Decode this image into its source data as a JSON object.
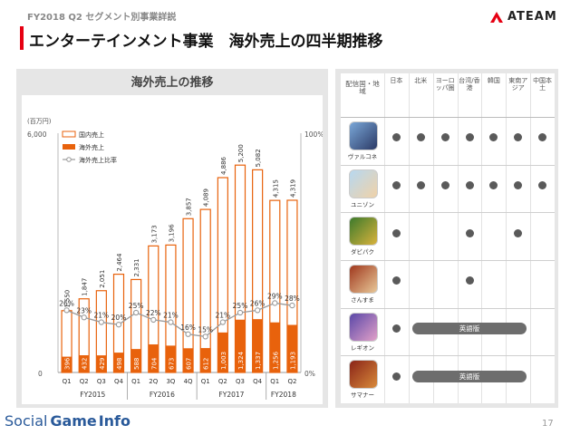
{
  "header": {
    "subtitle": "FY2018 Q2 セグメント別事業詳説",
    "title": "エンターテインメント事業　海外売上の四半期推移",
    "logo_text": "ATEAM",
    "accent_color": "#e60012"
  },
  "chart": {
    "panel_title": "海外売上の推移",
    "unit_label": "(百万円)",
    "left_axis_ticks": [
      "0",
      "6,000"
    ],
    "right_axis_ticks": [
      "0%",
      "100%"
    ]
  },
  "chart_data": {
    "type": "bar",
    "categories": [
      "Q1",
      "Q2",
      "Q3",
      "Q4",
      "Q1",
      "2Q",
      "3Q",
      "4Q",
      "Q1",
      "Q2",
      "Q3",
      "Q4",
      "Q1",
      "Q2"
    ],
    "fiscal_years": [
      {
        "label": "FY2015",
        "count": 4
      },
      {
        "label": "FY2016",
        "count": 4
      },
      {
        "label": "FY2017",
        "count": 4
      },
      {
        "label": "FY2018",
        "count": 2
      }
    ],
    "series": [
      {
        "name": "国内売上",
        "type": "bar-outline",
        "color": "#e8620c",
        "values": [
          1550,
          1847,
          2051,
          2464,
          2331,
          3173,
          3196,
          3857,
          4089,
          4886,
          5200,
          5082,
          4315,
          4319
        ],
        "labels": [
          "1,550",
          "1,847",
          "2,051",
          "2,464",
          "2,331",
          "3,173",
          "3,196",
          "3,857",
          "4,089",
          "4,886",
          "5,200",
          "5,082",
          "4,315",
          "4,319"
        ]
      },
      {
        "name": "海外売上",
        "type": "bar-filled",
        "color": "#e8620c",
        "values": [
          396,
          432,
          429,
          498,
          588,
          704,
          673,
          607,
          612,
          1003,
          1324,
          1337,
          1256,
          1193
        ],
        "labels": [
          "396",
          "432",
          "429",
          "498",
          "588",
          "704",
          "673",
          "607",
          "612",
          "1,003",
          "1,324",
          "1,337",
          "1,256",
          "1,193"
        ]
      },
      {
        "name": "海外売上比率",
        "type": "line",
        "color": "#9a9a9a",
        "values": [
          26,
          23,
          21,
          20,
          25,
          22,
          21,
          16,
          15,
          21,
          25,
          26,
          29,
          28
        ],
        "labels": [
          "26%",
          "23%",
          "21%",
          "20%",
          "25%",
          "22%",
          "21%",
          "16%",
          "15%",
          "21%",
          "25%",
          "26%",
          "29%",
          "28%"
        ]
      }
    ],
    "ylim": [
      0,
      6000
    ],
    "y2lim": [
      0,
      100
    ],
    "legend_position": "top-left"
  },
  "table": {
    "header_first": "配信国・地域",
    "columns": [
      "日本",
      "北米",
      "ヨーロッパ圏",
      "台湾/香港",
      "韓国",
      "東南アジア",
      "中国本土"
    ],
    "rows": [
      {
        "name": "ヴァルコネ",
        "icon": "valkone-icon",
        "colors": [
          "#7aa7d8",
          "#2b3a66"
        ],
        "dots": [
          true,
          true,
          true,
          true,
          true,
          true,
          true
        ],
        "pill": null
      },
      {
        "name": "ユニゾン",
        "icon": "unison-icon",
        "colors": [
          "#b7d8f0",
          "#f0d2a8"
        ],
        "dots": [
          true,
          true,
          true,
          true,
          true,
          true,
          true
        ],
        "pill": null
      },
      {
        "name": "ダビパク",
        "icon": "dabipaku-icon",
        "colors": [
          "#3c7a2c",
          "#d9b23c"
        ],
        "dots": [
          true,
          false,
          false,
          true,
          false,
          true,
          false
        ],
        "pill": null
      },
      {
        "name": "さんすま",
        "icon": "sansuma-icon",
        "colors": [
          "#a0381e",
          "#e8c898"
        ],
        "dots": [
          true,
          false,
          false,
          true,
          false,
          false,
          false
        ],
        "pill": null
      },
      {
        "name": "レギオン",
        "icon": "legion-icon",
        "colors": [
          "#5a48a8",
          "#e2a0c8"
        ],
        "dots": [
          true,
          false,
          false,
          false,
          false,
          false,
          false
        ],
        "pill": "英語版"
      },
      {
        "name": "サマナー",
        "icon": "summoner-icon",
        "colors": [
          "#8a2418",
          "#d88a3a"
        ],
        "dots": [
          true,
          false,
          false,
          false,
          false,
          false,
          false
        ],
        "pill": "英語版"
      }
    ]
  },
  "footer": {
    "logo_part1": "Social",
    "logo_part2": "Game",
    "logo_part3": "Info",
    "page_number": "17"
  }
}
